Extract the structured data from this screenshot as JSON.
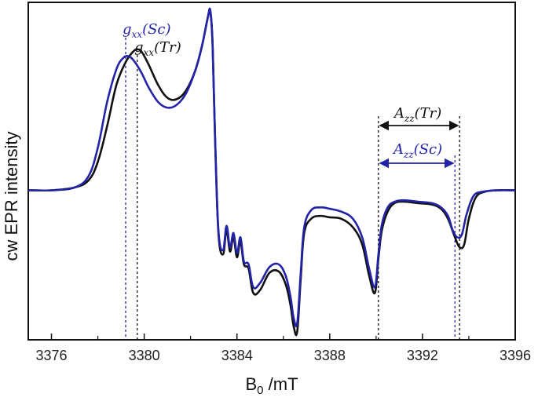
{
  "chart_data": {
    "type": "line",
    "title": "",
    "xlabel_main": "B",
    "xlabel_sub": "0",
    "xlabel_unit": " /mT",
    "ylabel": "cw EPR intensity",
    "xlim": [
      3375,
      3396
    ],
    "ylim": [
      -1.05,
      1.32
    ],
    "xticks": [
      3376,
      3380,
      3384,
      3388,
      3392,
      3396
    ],
    "xtick_labels": [
      "3376",
      "3380",
      "3384",
      "3388",
      "3392",
      "3396"
    ],
    "grid": false,
    "colors": {
      "tr": "#111111",
      "sc": "#2323a8"
    },
    "series": [
      {
        "key": "tr",
        "x": [
          3375.0,
          3376.0,
          3377.0,
          3377.6,
          3378.0,
          3378.4,
          3378.8,
          3379.2,
          3379.5,
          3379.7,
          3379.9,
          3380.2,
          3380.6,
          3381.0,
          3381.4,
          3381.8,
          3382.2,
          3382.5,
          3382.75,
          3382.85,
          3382.95,
          3383.05,
          3383.2,
          3383.4,
          3383.55,
          3383.7,
          3383.85,
          3384.0,
          3384.15,
          3384.3,
          3384.5,
          3384.7,
          3385.0,
          3385.4,
          3385.8,
          3386.1,
          3386.3,
          3386.45,
          3386.6,
          3386.75,
          3386.9,
          3387.2,
          3387.6,
          3388.0,
          3388.5,
          3389.0,
          3389.4,
          3389.7,
          3389.95,
          3390.1,
          3390.25,
          3390.5,
          3390.8,
          3391.2,
          3391.8,
          3392.4,
          3392.8,
          3393.1,
          3393.4,
          3393.6,
          3393.8,
          3394.0,
          3394.3,
          3394.7,
          3395.2,
          3396.0
        ],
        "y": [
          0.0,
          0.0,
          0.02,
          0.07,
          0.2,
          0.45,
          0.74,
          0.9,
          0.97,
          0.99,
          0.97,
          0.88,
          0.74,
          0.65,
          0.64,
          0.7,
          0.84,
          1.02,
          1.22,
          1.26,
          1.02,
          0.4,
          -0.3,
          -0.45,
          -0.28,
          -0.43,
          -0.33,
          -0.47,
          -0.36,
          -0.52,
          -0.55,
          -0.72,
          -0.7,
          -0.58,
          -0.57,
          -0.66,
          -0.8,
          -0.96,
          -0.99,
          -0.62,
          -0.3,
          -0.2,
          -0.18,
          -0.19,
          -0.2,
          -0.26,
          -0.38,
          -0.6,
          -0.72,
          -0.48,
          -0.28,
          -0.15,
          -0.09,
          -0.08,
          -0.09,
          -0.1,
          -0.13,
          -0.2,
          -0.33,
          -0.4,
          -0.38,
          -0.2,
          -0.05,
          -0.01,
          0.0,
          0.0
        ]
      },
      {
        "key": "sc",
        "x": [
          3375.0,
          3376.0,
          3377.0,
          3377.6,
          3378.0,
          3378.4,
          3378.8,
          3379.1,
          3379.35,
          3379.6,
          3379.9,
          3380.2,
          3380.6,
          3381.0,
          3381.4,
          3381.8,
          3382.2,
          3382.5,
          3382.75,
          3382.85,
          3382.95,
          3383.05,
          3383.2,
          3383.4,
          3383.55,
          3383.7,
          3383.85,
          3384.0,
          3384.15,
          3384.3,
          3384.5,
          3384.7,
          3385.0,
          3385.4,
          3385.8,
          3386.1,
          3386.3,
          3386.45,
          3386.6,
          3386.75,
          3386.9,
          3387.2,
          3387.6,
          3388.0,
          3388.5,
          3389.0,
          3389.4,
          3389.7,
          3389.95,
          3390.1,
          3390.25,
          3390.5,
          3390.8,
          3391.2,
          3391.8,
          3392.4,
          3392.8,
          3393.1,
          3393.3,
          3393.5,
          3393.7,
          3393.9,
          3394.2,
          3394.6,
          3395.2,
          3396.0
        ],
        "y": [
          0.0,
          0.0,
          0.02,
          0.1,
          0.3,
          0.62,
          0.85,
          0.93,
          0.94,
          0.9,
          0.82,
          0.72,
          0.62,
          0.58,
          0.6,
          0.68,
          0.84,
          1.02,
          1.22,
          1.26,
          1.02,
          0.4,
          -0.28,
          -0.42,
          -0.25,
          -0.4,
          -0.3,
          -0.44,
          -0.33,
          -0.5,
          -0.52,
          -0.68,
          -0.65,
          -0.54,
          -0.52,
          -0.6,
          -0.74,
          -0.9,
          -0.93,
          -0.58,
          -0.26,
          -0.14,
          -0.12,
          -0.13,
          -0.15,
          -0.2,
          -0.33,
          -0.55,
          -0.68,
          -0.45,
          -0.24,
          -0.12,
          -0.08,
          -0.07,
          -0.08,
          -0.09,
          -0.12,
          -0.18,
          -0.28,
          -0.33,
          -0.31,
          -0.17,
          -0.04,
          -0.01,
          0.0,
          0.0
        ]
      }
    ],
    "markers": [
      {
        "key": "gxx_sc",
        "x": 3379.2,
        "color_key": "sc"
      },
      {
        "key": "gxx_tr",
        "x": 3379.7,
        "color_key": "tr"
      },
      {
        "key": "azz_left",
        "x": 3390.1,
        "color_key": "tr"
      },
      {
        "key": "azz_tr_right",
        "x": 3393.6,
        "color_key": "tr"
      },
      {
        "key": "azz_sc_right",
        "x": 3393.4,
        "color_key": "sc"
      }
    ],
    "annotations": {
      "gxx_sc": {
        "main": "g",
        "sub": "xx",
        "paren": "(Sc)"
      },
      "gxx_tr": {
        "main": "g",
        "sub": "xx",
        "paren": "(Tr)"
      },
      "azz_tr": {
        "main": "A",
        "sub": "zz",
        "paren": "(Tr)"
      },
      "azz_sc": {
        "main": "A",
        "sub": "zz",
        "paren": "(Sc)"
      }
    }
  }
}
